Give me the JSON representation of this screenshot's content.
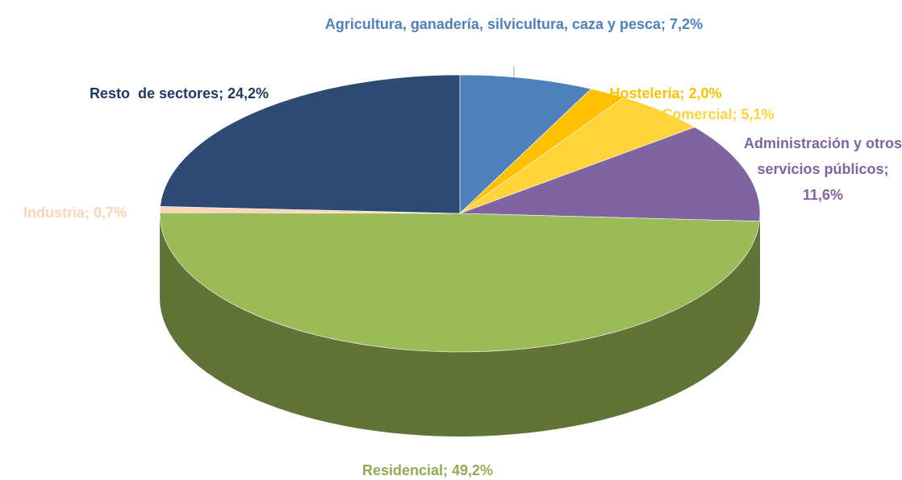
{
  "chart_data": {
    "type": "pie",
    "values": [
      7.2,
      2.0,
      5.1,
      11.6,
      49.2,
      0.7,
      24.2
    ],
    "value_labels": [
      "Agricultura, ganadería, silvicultura, caza y pesca; 7,2%",
      "Hostelería; 2,0%",
      "Comercial; 5,1%",
      "Administración y otros servicios públicos; 11,6%",
      "Residencial; 49,2%",
      "Industria; 0,7%",
      "Resto  de sectores; 24,2%"
    ],
    "colors": [
      "#4f81bd",
      "#ffc000",
      "#ffd43b",
      "#8064a2",
      "#9bbb59",
      "#fbd5b5",
      "#2c4a72"
    ],
    "label_colors": [
      "#4f81bd",
      "#ffc000",
      "#ffd43b",
      "#8064a2",
      "#8fad51",
      "#fbd5b5",
      "#1f3864"
    ]
  }
}
